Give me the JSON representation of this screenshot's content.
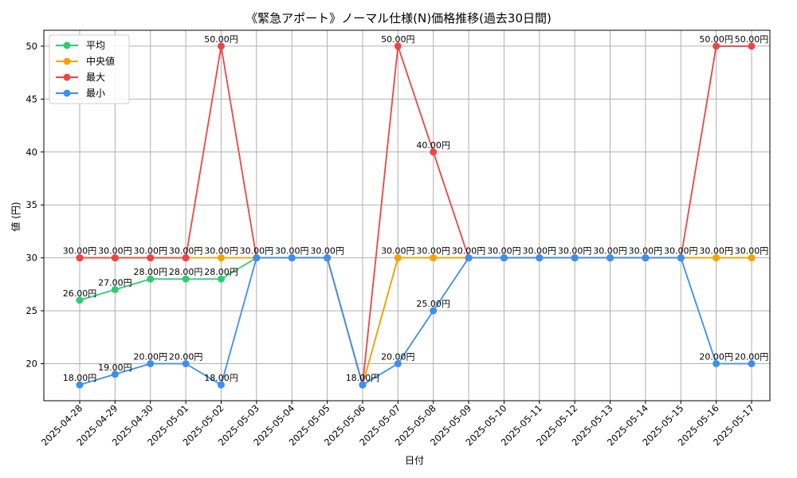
{
  "chart_data": {
    "type": "line",
    "title": "《緊急アポート》ノーマル仕様(N)価格推移(過去30日間)",
    "xlabel": "日付",
    "ylabel": "値 (円)",
    "ylim": [
      16.5,
      51.5
    ],
    "yticks": [
      20,
      25,
      30,
      35,
      40,
      45,
      50
    ],
    "grid": true,
    "legend_position": "top-left",
    "label_suffix": "円",
    "categories": [
      "2025-04-28",
      "2025-04-29",
      "2025-04-30",
      "2025-05-01",
      "2025-05-02",
      "2025-05-03",
      "2025-05-04",
      "2025-05-05",
      "2025-05-06",
      "2025-05-07",
      "2025-05-08",
      "2025-05-09",
      "2025-05-10",
      "2025-05-11",
      "2025-05-12",
      "2025-05-13",
      "2025-05-14",
      "2025-05-15",
      "2025-05-16",
      "2025-05-17"
    ],
    "series": [
      {
        "name": "平均",
        "color": "#2ecc71",
        "values": [
          26,
          27,
          28,
          28,
          28,
          30,
          30,
          30,
          18,
          30,
          30,
          30,
          30,
          30,
          30,
          30,
          30,
          30,
          30,
          30
        ]
      },
      {
        "name": "中央値",
        "color": "#f5a300",
        "values": [
          30,
          30,
          30,
          30,
          30,
          30,
          30,
          30,
          18,
          30,
          30,
          30,
          30,
          30,
          30,
          30,
          30,
          30,
          30,
          30
        ]
      },
      {
        "name": "最大",
        "color": "#ef4444",
        "values": [
          30,
          30,
          30,
          30,
          50,
          30,
          30,
          30,
          18,
          50,
          40,
          30,
          30,
          30,
          30,
          30,
          30,
          30,
          50,
          50
        ]
      },
      {
        "name": "最小",
        "color": "#3b8ff0",
        "values": [
          18,
          19,
          20,
          20,
          18,
          30,
          30,
          30,
          18,
          20,
          25,
          30,
          30,
          30,
          30,
          30,
          30,
          30,
          20,
          20
        ]
      }
    ]
  }
}
